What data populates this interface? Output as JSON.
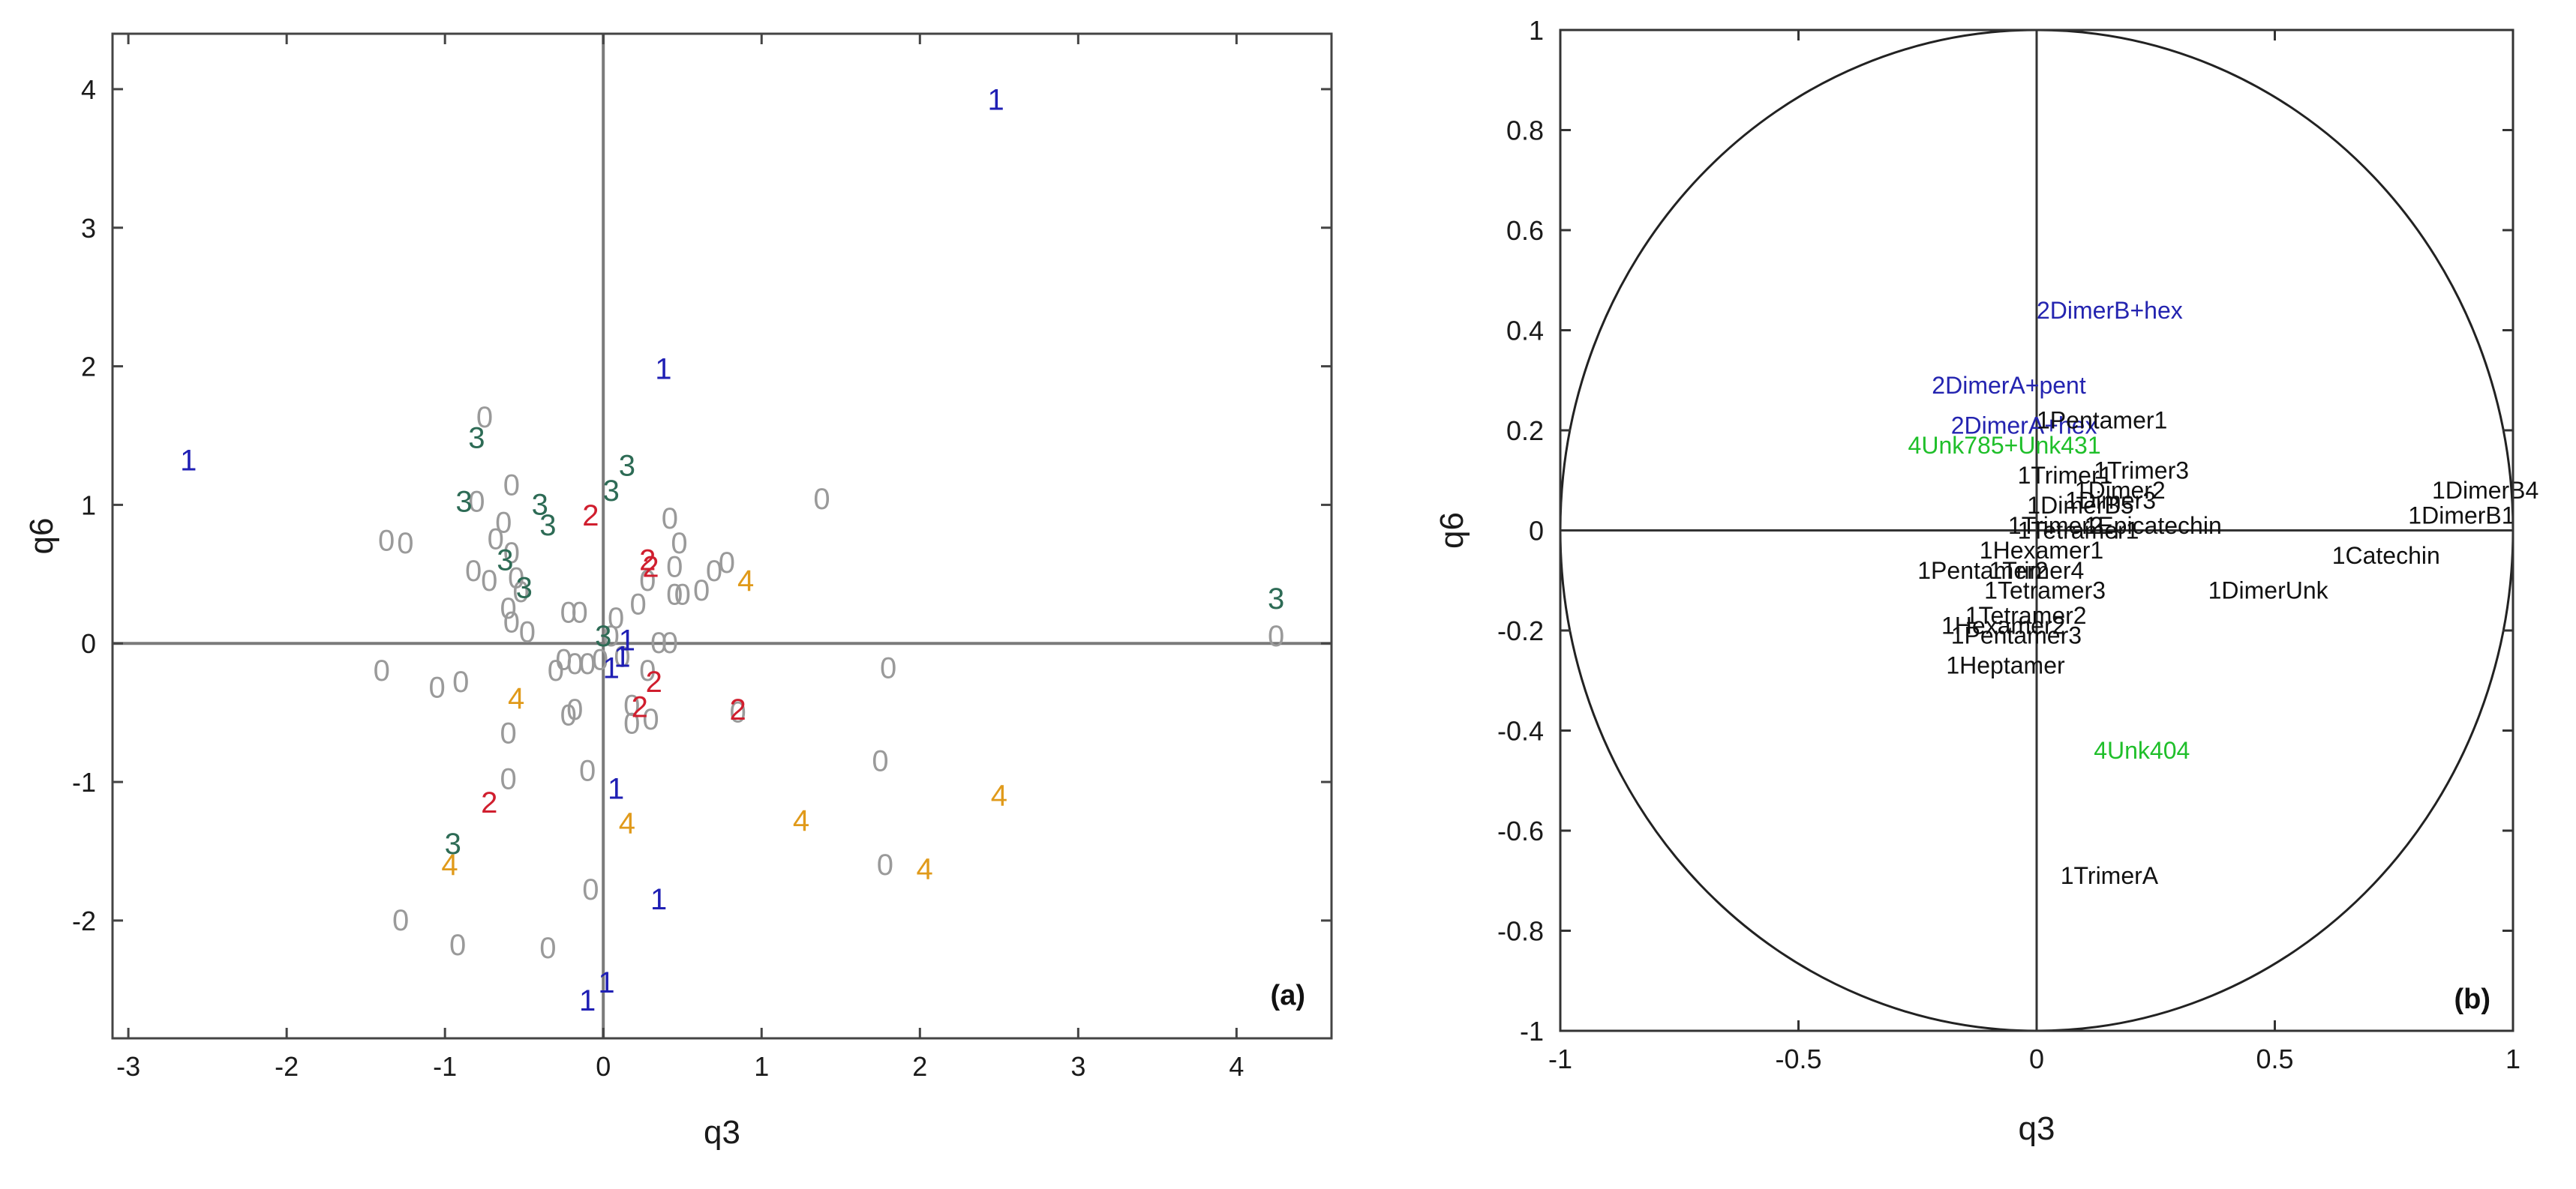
{
  "colors": {
    "group0": "#9a9a9a",
    "group1": "#1f1fb4",
    "group2": "#d01e2e",
    "group3": "#2d6b55",
    "group4": "#e09a1a",
    "label_black": "#111111",
    "label_blue": "#2424b0",
    "label_green": "#1fbf2a"
  },
  "chart_data": [
    {
      "type": "scatter",
      "panel_tag": "(a)",
      "xlabel": "q3",
      "ylabel": "q6",
      "xlim": [
        -3.1,
        4.6
      ],
      "ylim": [
        -2.85,
        4.4
      ],
      "xticks": [
        -3,
        -2,
        -1,
        0,
        1,
        2,
        3,
        4
      ],
      "yticks": [
        -2,
        -1,
        0,
        1,
        2,
        3,
        4
      ],
      "grid": false,
      "reference_lines": {
        "x": 0,
        "y": 0
      },
      "series": [
        {
          "marker": "0",
          "color_key": "group0",
          "points": [
            [
              -0.75,
              1.63
            ],
            [
              -0.58,
              1.14
            ],
            [
              -0.8,
              1.02
            ],
            [
              -0.63,
              0.87
            ],
            [
              -0.68,
              0.75
            ],
            [
              -0.58,
              0.65
            ],
            [
              -1.37,
              0.74
            ],
            [
              -1.25,
              0.72
            ],
            [
              -0.82,
              0.52
            ],
            [
              -0.72,
              0.45
            ],
            [
              -0.55,
              0.47
            ],
            [
              -0.52,
              0.37
            ],
            [
              -0.6,
              0.25
            ],
            [
              -0.58,
              0.15
            ],
            [
              -0.48,
              0.08
            ],
            [
              -0.22,
              0.22
            ],
            [
              -0.15,
              0.22
            ],
            [
              0.05,
              0.05
            ],
            [
              0.08,
              0.18
            ],
            [
              0.22,
              0.28
            ],
            [
              0.28,
              0.45
            ],
            [
              0.42,
              0.9
            ],
            [
              0.48,
              0.72
            ],
            [
              0.45,
              0.55
            ],
            [
              0.45,
              0.35
            ],
            [
              0.5,
              0.35
            ],
            [
              0.62,
              0.38
            ],
            [
              0.7,
              0.52
            ],
            [
              0.78,
              0.58
            ],
            [
              1.38,
              1.04
            ],
            [
              -1.4,
              -0.2
            ],
            [
              -1.05,
              -0.32
            ],
            [
              -0.9,
              -0.28
            ],
            [
              -0.6,
              -0.65
            ],
            [
              -0.3,
              -0.2
            ],
            [
              -0.25,
              -0.12
            ],
            [
              -0.18,
              -0.15
            ],
            [
              -0.02,
              -0.12
            ],
            [
              0.28,
              -0.2
            ],
            [
              0.35,
              0.0
            ],
            [
              0.42,
              0.0
            ],
            [
              0.18,
              -0.45
            ],
            [
              0.18,
              -0.58
            ],
            [
              0.3,
              -0.55
            ],
            [
              -0.22,
              -0.52
            ],
            [
              -0.18,
              -0.48
            ],
            [
              -0.1,
              -0.92
            ],
            [
              -0.6,
              -0.98
            ],
            [
              -0.08,
              -1.78
            ],
            [
              -1.28,
              -2.0
            ],
            [
              -0.92,
              -2.18
            ],
            [
              -0.35,
              -2.2
            ],
            [
              0.85,
              -0.5
            ],
            [
              1.8,
              -0.18
            ],
            [
              1.75,
              -0.85
            ],
            [
              1.78,
              -1.6
            ],
            [
              4.25,
              0.05
            ],
            [
              -0.1,
              -0.15
            ],
            [
              0.12,
              -0.1
            ]
          ]
        },
        {
          "marker": "1",
          "color_key": "group1",
          "points": [
            [
              2.48,
              3.92
            ],
            [
              0.38,
              1.98
            ],
            [
              -2.62,
              1.32
            ],
            [
              0.05,
              -0.18
            ],
            [
              0.12,
              -0.1
            ],
            [
              0.15,
              0.02
            ],
            [
              0.08,
              -1.05
            ],
            [
              0.35,
              -1.85
            ],
            [
              0.02,
              -2.45
            ],
            [
              -0.1,
              -2.58
            ]
          ]
        },
        {
          "marker": "2",
          "color_key": "group2",
          "points": [
            [
              -0.08,
              0.92
            ],
            [
              0.28,
              0.6
            ],
            [
              0.3,
              0.55
            ],
            [
              0.32,
              -0.28
            ],
            [
              0.23,
              -0.46
            ],
            [
              0.85,
              -0.48
            ],
            [
              -0.72,
              -1.15
            ]
          ]
        },
        {
          "marker": "3",
          "color_key": "group3",
          "points": [
            [
              -0.8,
              1.48
            ],
            [
              0.05,
              1.1
            ],
            [
              0.15,
              1.28
            ],
            [
              -0.88,
              1.02
            ],
            [
              -0.4,
              1.0
            ],
            [
              -0.35,
              0.85
            ],
            [
              -0.62,
              0.6
            ],
            [
              -0.5,
              0.4
            ],
            [
              0.0,
              0.05
            ],
            [
              4.25,
              0.32
            ],
            [
              -0.95,
              -1.45
            ]
          ]
        },
        {
          "marker": "4",
          "color_key": "group4",
          "points": [
            [
              0.9,
              0.45
            ],
            [
              -0.55,
              -0.4
            ],
            [
              0.15,
              -1.3
            ],
            [
              1.25,
              -1.28
            ],
            [
              2.5,
              -1.1
            ],
            [
              2.03,
              -1.63
            ],
            [
              -0.97,
              -1.6
            ]
          ]
        }
      ]
    },
    {
      "type": "scatter",
      "panel_tag": "(b)",
      "xlabel": "q3",
      "ylabel": "q6",
      "xlim": [
        -1,
        1
      ],
      "ylim": [
        -1,
        1
      ],
      "xticks": [
        -1,
        -0.5,
        0,
        0.5,
        1
      ],
      "xtick_labels": [
        "-1",
        "-0.5",
        "0",
        "0.5",
        "1"
      ],
      "yticks": [
        -1,
        -0.8,
        -0.6,
        -0.4,
        -0.2,
        0,
        0.2,
        0.4,
        0.6,
        0.8,
        1
      ],
      "ytick_labels": [
        "-1",
        "-0.8",
        "-0.6",
        "-0.4",
        "-0.2",
        "0",
        "0.2",
        "0.4",
        "0.6",
        "0.8",
        "1"
      ],
      "grid": false,
      "unit_circle": true,
      "reference_lines": {
        "x": 0,
        "y": 0
      },
      "points": [
        {
          "label": "2DimerB+hex",
          "x": 0.0,
          "y": 0.44,
          "color_key": "label_blue"
        },
        {
          "label": "2DimerA+pent",
          "x": -0.22,
          "y": 0.29,
          "color_key": "label_blue"
        },
        {
          "label": "2DimerA+hex",
          "x": -0.18,
          "y": 0.21,
          "color_key": "label_blue"
        },
        {
          "label": "1Pentamer1",
          "x": 0.0,
          "y": 0.22,
          "color_key": "label_black"
        },
        {
          "label": "4Unk785+Unk431",
          "x": -0.27,
          "y": 0.17,
          "color_key": "label_green"
        },
        {
          "label": "1Trimer3",
          "x": 0.12,
          "y": 0.12,
          "color_key": "label_black"
        },
        {
          "label": "1Trimer1",
          "x": -0.04,
          "y": 0.11,
          "color_key": "label_black"
        },
        {
          "label": "1Dimer2",
          "x": 0.08,
          "y": 0.08,
          "color_key": "label_black"
        },
        {
          "label": "1Dimer3",
          "x": 0.06,
          "y": 0.06,
          "color_key": "label_black"
        },
        {
          "label": "1DimerB5",
          "x": -0.02,
          "y": 0.05,
          "color_key": "label_black"
        },
        {
          "label": "1Trimer2",
          "x": -0.06,
          "y": 0.01,
          "color_key": "label_black"
        },
        {
          "label": "1Tetramer1",
          "x": -0.04,
          "y": 0.0,
          "color_key": "label_black"
        },
        {
          "label": "1Epicatechin",
          "x": 0.1,
          "y": 0.01,
          "color_key": "label_black"
        },
        {
          "label": "1DimerB4",
          "x": 0.83,
          "y": 0.08,
          "color_key": "label_black"
        },
        {
          "label": "1DimerB1",
          "x": 0.78,
          "y": 0.03,
          "color_key": "label_black"
        },
        {
          "label": "1Catechin",
          "x": 0.62,
          "y": -0.05,
          "color_key": "label_black"
        },
        {
          "label": "1DimerUnk",
          "x": 0.36,
          "y": -0.12,
          "color_key": "label_black"
        },
        {
          "label": "1Hexamer1",
          "x": -0.12,
          "y": -0.04,
          "color_key": "label_black"
        },
        {
          "label": "1Pentamer2",
          "x": -0.25,
          "y": -0.08,
          "color_key": "label_black"
        },
        {
          "label": "1Trimer4",
          "x": -0.1,
          "y": -0.08,
          "color_key": "label_black"
        },
        {
          "label": "1Tetramer3",
          "x": -0.11,
          "y": -0.12,
          "color_key": "label_black"
        },
        {
          "label": "1Tetramer2",
          "x": -0.15,
          "y": -0.17,
          "color_key": "label_black"
        },
        {
          "label": "1Hexamer2",
          "x": -0.2,
          "y": -0.19,
          "color_key": "label_black"
        },
        {
          "label": "1Pentamer3",
          "x": -0.18,
          "y": -0.21,
          "color_key": "label_black"
        },
        {
          "label": "1Heptamer",
          "x": -0.19,
          "y": -0.27,
          "color_key": "label_black"
        },
        {
          "label": "4Unk404",
          "x": 0.12,
          "y": -0.44,
          "color_key": "label_green"
        },
        {
          "label": "1TrimerA",
          "x": 0.05,
          "y": -0.69,
          "color_key": "label_black"
        }
      ]
    }
  ]
}
